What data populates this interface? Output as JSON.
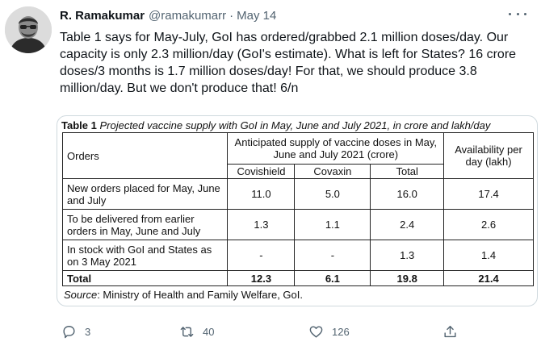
{
  "author": {
    "name": "R. Ramakumar",
    "handle": "@ramakumarr",
    "separator": "·",
    "date": "May 14"
  },
  "tweet": {
    "text": "Table 1 says for May-July, GoI has ordered/grabbed 2.1 million doses/day. Our capacity is only 2.3 million/day (GoI's estimate). What is left for States? 16 crore doses/3 months is 1.7 million doses/day! For that, we should produce 3.8 million/day. But we don't produce that! 6/n"
  },
  "table": {
    "caption_label": "Table 1",
    "caption_text": "Projected vaccine supply with GoI in May, June and July 2021, in crore and lakh/day",
    "headers": {
      "orders": "Orders",
      "anticipated": "Anticipated supply of vaccine doses in May, June and July 2021 (crore)",
      "availability": "Availability per day (lakh)",
      "covishield": "Covishield",
      "covaxin": "Covaxin",
      "total": "Total"
    },
    "rows": [
      {
        "orders": "New orders placed for May, June and July",
        "covishield": "11.0",
        "covaxin": "5.0",
        "total": "16.0",
        "availability": "17.4"
      },
      {
        "orders": "To be delivered from earlier orders in May, June and July",
        "covishield": "1.3",
        "covaxin": "1.1",
        "total": "2.4",
        "availability": "2.6"
      },
      {
        "orders": "In stock with GoI and States as on 3 May 2021",
        "covishield": "-",
        "covaxin": "-",
        "total": "1.3",
        "availability": "1.4"
      }
    ],
    "total_row": {
      "orders": "Total",
      "covishield": "12.3",
      "covaxin": "6.1",
      "total": "19.8",
      "availability": "21.4"
    },
    "source_label": "Source",
    "source_text": ": Ministry of Health and Family Welfare, GoI."
  },
  "actions": {
    "reply_count": "3",
    "retweet_count": "40",
    "like_count": "126"
  },
  "icons": {
    "reply": "reply-icon",
    "retweet": "retweet-icon",
    "like": "like-icon",
    "share": "share-icon",
    "more": "more-icon"
  },
  "colors": {
    "secondary_text": "#536471",
    "primary_text": "#0f1419"
  }
}
